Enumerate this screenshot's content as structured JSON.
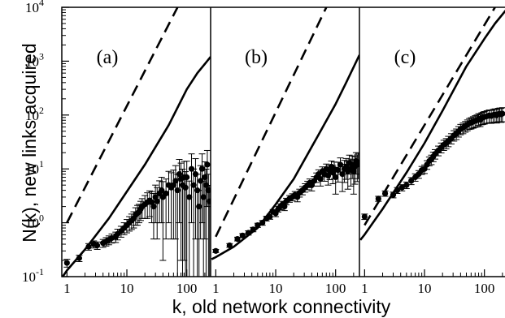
{
  "chart_data": {
    "type": "scatter",
    "xlabel": "k, old network connectivity",
    "ylabel": "N(k), new links acquired",
    "x_scale": "log",
    "y_scale": "log",
    "ylim": [
      0.1,
      10000
    ],
    "y_ticks": [
      {
        "mantissa": "10",
        "exp": "-1"
      },
      {
        "mantissa": "10",
        "exp": "0"
      },
      {
        "mantissa": "10",
        "exp": "1"
      },
      {
        "mantissa": "10",
        "exp": "2"
      },
      {
        "mantissa": "10",
        "exp": "3"
      },
      {
        "mantissa": "10",
        "exp": "4"
      }
    ],
    "x_tick_labels": [
      "1",
      "10",
      "100"
    ],
    "grid": false,
    "panels": [
      {
        "label": "(a)",
        "xlim": [
          0.82,
          250
        ],
        "dashed": {
          "x": [
            1,
            70
          ],
          "y": [
            1,
            10000
          ]
        },
        "solid": {
          "x": [
            0.85,
            1,
            2,
            5,
            10,
            20,
            50,
            100,
            150,
            250
          ],
          "y": [
            0.1,
            0.13,
            0.32,
            1.2,
            3.8,
            12,
            65,
            300,
            600,
            1200
          ]
        },
        "points": {
          "x": [
            1,
            1.6,
            2.3,
            2.8,
            3.2,
            4,
            4.5,
            5,
            5.6,
            6.5,
            7,
            8,
            9,
            10,
            11,
            12,
            13,
            14,
            15,
            16,
            17,
            18,
            20,
            22,
            24,
            26,
            28,
            30,
            32,
            35,
            38,
            40,
            45,
            50,
            55,
            60,
            65,
            70,
            75,
            80,
            85,
            90,
            95,
            100,
            110,
            120,
            130,
            140,
            150,
            160,
            170,
            180,
            190,
            200,
            210,
            220,
            230,
            240
          ],
          "y": [
            0.18,
            0.22,
            0.36,
            0.4,
            0.38,
            0.42,
            0.45,
            0.48,
            0.52,
            0.55,
            0.62,
            0.7,
            0.8,
            0.9,
            1.0,
            1.1,
            1.2,
            1.4,
            1.5,
            1.6,
            1.8,
            2.0,
            2.2,
            2.4,
            2.6,
            2.4,
            2.0,
            3.0,
            2.5,
            3.5,
            4.0,
            3.0,
            3.5,
            5.0,
            4.5,
            5.0,
            6.0,
            4.0,
            8.0,
            6.5,
            5.0,
            7.0,
            4.5,
            7.0,
            3.0,
            10.0,
            5.0,
            8.0,
            4.0,
            2.0,
            6.0,
            10.0,
            3.0,
            7.0,
            5.0,
            12.0,
            4.0,
            2.5
          ],
          "err": [
            0.03,
            0.03,
            0.05,
            0.06,
            0.06,
            0.07,
            0.08,
            0.09,
            0.1,
            0.12,
            0.14,
            0.16,
            0.2,
            0.25,
            0.3,
            0.35,
            0.4,
            0.5,
            0.6,
            0.6,
            0.7,
            0.8,
            1.0,
            1.2,
            1.3,
            1.4,
            1.5,
            2.0,
            2.0,
            2.5,
            3.0,
            2.8,
            3.0,
            4.0,
            4.0,
            4.5,
            5.5,
            3.9,
            7.0,
            6.3,
            4.9,
            6.8,
            4.4,
            6.9,
            2.95,
            9.0,
            4.95,
            7.5,
            3.95,
            1.98,
            5.5,
            9.0,
            2.95,
            6.5,
            4.9,
            10.0,
            3.95,
            2.45
          ]
        }
      },
      {
        "label": "(b)",
        "xlim": [
          0.82,
          250
        ],
        "dashed": {
          "x": [
            1,
            70
          ],
          "y": [
            0.55,
            10000
          ]
        },
        "solid": {
          "x": [
            0.85,
            1,
            2,
            5,
            10,
            20,
            50,
            100,
            150,
            250
          ],
          "y": [
            0.21,
            0.23,
            0.36,
            0.8,
            2.2,
            6.5,
            40,
            160,
            400,
            1300
          ]
        },
        "points": {
          "x": [
            1,
            1.7,
            2.3,
            2.8,
            3.5,
            4.2,
            5,
            6,
            7,
            8,
            9,
            10,
            11,
            12,
            13,
            14,
            15,
            17,
            19,
            21,
            23,
            25,
            28,
            31,
            34,
            37,
            40,
            44,
            48,
            52,
            56,
            60,
            65,
            70,
            75,
            80,
            85,
            90,
            95,
            100,
            110,
            120,
            130,
            140,
            150,
            160,
            170,
            180,
            190,
            200,
            210,
            220,
            230,
            240
          ],
          "y": [
            0.3,
            0.38,
            0.5,
            0.58,
            0.65,
            0.75,
            0.9,
            1.0,
            1.2,
            1.3,
            1.6,
            1.5,
            1.8,
            2.0,
            2.2,
            2.0,
            2.5,
            2.8,
            3.0,
            3.3,
            3.0,
            3.6,
            4.0,
            4.5,
            5.0,
            5.5,
            5.0,
            6.0,
            7.0,
            8.0,
            6.5,
            9.0,
            8.0,
            10.0,
            7.5,
            9.0,
            11.0,
            8.5,
            10.0,
            7.0,
            9.5,
            12.0,
            8.0,
            10.0,
            11.0,
            9.0,
            13.0,
            10.0,
            12.0,
            9.0,
            11.0,
            14.0,
            12.0,
            13.0
          ],
          "err": [
            0.02,
            0.03,
            0.04,
            0.05,
            0.06,
            0.07,
            0.08,
            0.1,
            0.12,
            0.14,
            0.16,
            0.2,
            0.22,
            0.25,
            0.3,
            0.32,
            0.35,
            0.4,
            0.45,
            0.5,
            0.55,
            0.6,
            0.7,
            0.8,
            0.9,
            1.0,
            1.1,
            1.2,
            1.4,
            1.6,
            1.7,
            1.9,
            2.1,
            2.3,
            2.5,
            2.7,
            3.0,
            3.2,
            3.4,
            3.6,
            3.8,
            4.0,
            4.2,
            4.4,
            4.6,
            4.8,
            5.0,
            5.2,
            5.4,
            5.6,
            5.8,
            6.0,
            6.2,
            6.4
          ]
        }
      },
      {
        "label": "(c)",
        "xlim": [
          0.82,
          250
        ],
        "dashed": {
          "x": [
            1,
            150
          ],
          "y": [
            0.9,
            10000
          ]
        },
        "solid": {
          "x": [
            0.85,
            1,
            2,
            5,
            10,
            20,
            50,
            100,
            150,
            250
          ],
          "y": [
            0.48,
            0.6,
            1.8,
            8.5,
            30,
            120,
            800,
            2600,
            5000,
            10000
          ]
        },
        "points": {
          "x": [
            1,
            1.7,
            2.2,
            3,
            3.5,
            4.2,
            5,
            6,
            7,
            8,
            9,
            10,
            11,
            12,
            13,
            14,
            15,
            17,
            19,
            21,
            23,
            25,
            28,
            31,
            34,
            37,
            40,
            44,
            48,
            52,
            56,
            60,
            65,
            70,
            75,
            80,
            85,
            90,
            95,
            100,
            110,
            120,
            130,
            140,
            150,
            160,
            170,
            180,
            190,
            200
          ],
          "y": [
            1.3,
            2.8,
            3.5,
            3.3,
            4.0,
            4.5,
            5.0,
            6.0,
            7.0,
            8.0,
            9.5,
            10.0,
            12.0,
            14.0,
            15.0,
            17.0,
            19.0,
            22.0,
            25.0,
            28.0,
            30.0,
            33.0,
            37.0,
            42.0,
            45.0,
            50.0,
            55.0,
            58.0,
            62.0,
            66.0,
            70.0,
            72.0,
            75.0,
            78.0,
            80.0,
            85.0,
            82.0,
            88.0,
            90.0,
            92.0,
            95.0,
            98.0,
            96.0,
            100.0,
            102.0,
            99.0,
            104.0,
            105.0,
            103.0,
            106.0
          ],
          "err": [
            0.15,
            0.3,
            0.4,
            0.4,
            0.5,
            0.6,
            0.7,
            0.9,
            1.1,
            1.3,
            1.6,
            1.8,
            2.2,
            2.6,
            3.0,
            3.4,
            3.8,
            4.5,
            5.2,
            6.0,
            6.5,
            7.2,
            8.0,
            9.2,
            10.0,
            11.0,
            12.0,
            13.0,
            14.0,
            15.0,
            16.0,
            17.0,
            18.0,
            19.0,
            20.0,
            21.0,
            21.0,
            22.0,
            23.0,
            24.0,
            25.0,
            26.0,
            26.0,
            27.0,
            28.0,
            28.0,
            29.0,
            30.0,
            30.0,
            31.0
          ]
        }
      }
    ]
  }
}
